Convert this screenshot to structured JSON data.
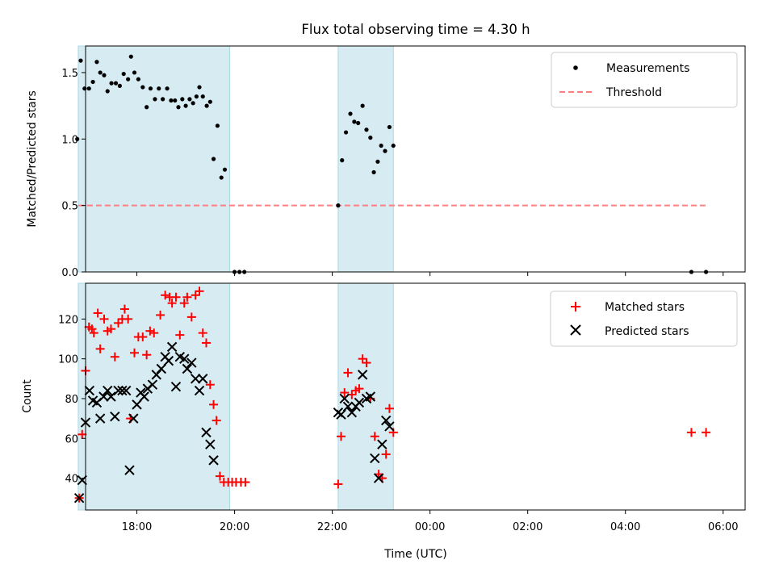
{
  "chart_data": [
    {
      "type": "scatter",
      "title": "Flux total observing time = 4.30 h",
      "xlabel": "",
      "ylabel": "Matched/Predicted stars",
      "ylim": [
        0,
        1.7
      ],
      "xlim": [
        16.95,
        30.45
      ],
      "yticks": [
        {
          "value": 0.0,
          "label": "0.0"
        },
        {
          "value": 0.5,
          "label": "0.5"
        },
        {
          "value": 1.0,
          "label": "1.0"
        },
        {
          "value": 1.5,
          "label": "1.5"
        }
      ],
      "shaded_intervals": [
        [
          16.8,
          19.9
        ],
        [
          22.12,
          23.25
        ]
      ],
      "legend_position": "top-right",
      "legend": [
        {
          "label": "Measurements",
          "marker": "dot",
          "color": "#000000"
        },
        {
          "label": "Threshold",
          "marker": "dashed-line",
          "color": "#ff7f7f"
        }
      ],
      "threshold": {
        "value": 0.5,
        "x_start": 16.8,
        "x_end": 29.65,
        "color": "#ff7f7f"
      },
      "series": [
        {
          "name": "Measurements",
          "color": "#000000",
          "points": [
            [
              16.78,
              1.0
            ],
            [
              16.85,
              1.59
            ],
            [
              16.93,
              1.38
            ],
            [
              17.02,
              1.38
            ],
            [
              17.1,
              1.43
            ],
            [
              17.18,
              1.58
            ],
            [
              17.25,
              1.5
            ],
            [
              17.33,
              1.48
            ],
            [
              17.4,
              1.36
            ],
            [
              17.48,
              1.42
            ],
            [
              17.57,
              1.42
            ],
            [
              17.65,
              1.4
            ],
            [
              17.73,
              1.49
            ],
            [
              17.82,
              1.45
            ],
            [
              17.88,
              1.62
            ],
            [
              17.95,
              1.5
            ],
            [
              18.03,
              1.45
            ],
            [
              18.12,
              1.39
            ],
            [
              18.2,
              1.24
            ],
            [
              18.28,
              1.38
            ],
            [
              18.37,
              1.3
            ],
            [
              18.45,
              1.38
            ],
            [
              18.53,
              1.3
            ],
            [
              18.62,
              1.38
            ],
            [
              18.7,
              1.29
            ],
            [
              18.78,
              1.29
            ],
            [
              18.85,
              1.24
            ],
            [
              18.93,
              1.3
            ],
            [
              19.0,
              1.25
            ],
            [
              19.08,
              1.3
            ],
            [
              19.15,
              1.27
            ],
            [
              19.22,
              1.32
            ],
            [
              19.28,
              1.39
            ],
            [
              19.35,
              1.32
            ],
            [
              19.43,
              1.25
            ],
            [
              19.5,
              1.28
            ],
            [
              19.57,
              0.85
            ],
            [
              19.65,
              1.1
            ],
            [
              19.73,
              0.71
            ],
            [
              19.8,
              0.77
            ],
            [
              20.0,
              0.0
            ],
            [
              20.1,
              0.0
            ],
            [
              20.2,
              0.0
            ],
            [
              22.12,
              0.5
            ],
            [
              22.2,
              0.84
            ],
            [
              22.28,
              1.05
            ],
            [
              22.37,
              1.19
            ],
            [
              22.45,
              1.13
            ],
            [
              22.53,
              1.12
            ],
            [
              22.62,
              1.25
            ],
            [
              22.7,
              1.07
            ],
            [
              22.78,
              1.01
            ],
            [
              22.85,
              0.75
            ],
            [
              22.93,
              0.83
            ],
            [
              23.0,
              0.95
            ],
            [
              23.08,
              0.91
            ],
            [
              23.17,
              1.09
            ],
            [
              23.25,
              0.95
            ],
            [
              29.35,
              0.0
            ],
            [
              29.65,
              0.0
            ]
          ]
        }
      ]
    },
    {
      "type": "scatter",
      "title": "",
      "xlabel": "Time (UTC)",
      "ylabel": "Count",
      "ylim": [
        24,
        138
      ],
      "xlim": [
        16.95,
        30.45
      ],
      "xticks": [
        {
          "value": 18,
          "label": "18:00"
        },
        {
          "value": 20,
          "label": "20:00"
        },
        {
          "value": 22,
          "label": "22:00"
        },
        {
          "value": 24,
          "label": "00:00"
        },
        {
          "value": 26,
          "label": "02:00"
        },
        {
          "value": 28,
          "label": "04:00"
        },
        {
          "value": 30,
          "label": "06:00"
        }
      ],
      "yticks": [
        {
          "value": 40,
          "label": "40"
        },
        {
          "value": 60,
          "label": "60"
        },
        {
          "value": 80,
          "label": "80"
        },
        {
          "value": 100,
          "label": "100"
        },
        {
          "value": 120,
          "label": "120"
        }
      ],
      "shaded_intervals": [
        [
          16.8,
          19.9
        ],
        [
          22.12,
          23.25
        ]
      ],
      "legend_position": "top-right",
      "legend": [
        {
          "label": "Matched stars",
          "marker": "plus",
          "color": "#ff0000"
        },
        {
          "label": "Predicted stars",
          "marker": "x",
          "color": "#000000"
        }
      ],
      "series": [
        {
          "name": "Matched stars",
          "marker": "plus",
          "color": "#ff0000",
          "points": [
            [
              16.82,
              30
            ],
            [
              16.88,
              62
            ],
            [
              16.95,
              94
            ],
            [
              17.02,
              116
            ],
            [
              17.08,
              115
            ],
            [
              17.12,
              113
            ],
            [
              17.2,
              123
            ],
            [
              17.25,
              105
            ],
            [
              17.33,
              120
            ],
            [
              17.4,
              114
            ],
            [
              17.47,
              115
            ],
            [
              17.55,
              101
            ],
            [
              17.62,
              118
            ],
            [
              17.7,
              120
            ],
            [
              17.75,
              125
            ],
            [
              17.82,
              120
            ],
            [
              17.87,
              70
            ],
            [
              17.95,
              103
            ],
            [
              18.03,
              111
            ],
            [
              18.12,
              111
            ],
            [
              18.2,
              102
            ],
            [
              18.27,
              114
            ],
            [
              18.35,
              113
            ],
            [
              18.48,
              122
            ],
            [
              18.58,
              132
            ],
            [
              18.67,
              131
            ],
            [
              18.72,
              128
            ],
            [
              18.8,
              131
            ],
            [
              18.88,
              112
            ],
            [
              18.97,
              128
            ],
            [
              19.03,
              131
            ],
            [
              19.12,
              121
            ],
            [
              19.2,
              132
            ],
            [
              19.28,
              134
            ],
            [
              19.35,
              113
            ],
            [
              19.42,
              108
            ],
            [
              19.5,
              87
            ],
            [
              19.57,
              77
            ],
            [
              19.63,
              69
            ],
            [
              19.7,
              41
            ],
            [
              19.78,
              38
            ],
            [
              19.87,
              38
            ],
            [
              19.95,
              38
            ],
            [
              20.03,
              38
            ],
            [
              20.13,
              38
            ],
            [
              20.22,
              38
            ],
            [
              22.12,
              37
            ],
            [
              22.18,
              61
            ],
            [
              22.25,
              83
            ],
            [
              22.32,
              93
            ],
            [
              22.4,
              82
            ],
            [
              22.48,
              84
            ],
            [
              22.55,
              85
            ],
            [
              22.62,
              100
            ],
            [
              22.7,
              98
            ],
            [
              22.78,
              80
            ],
            [
              22.87,
              61
            ],
            [
              22.95,
              42
            ],
            [
              23.02,
              40
            ],
            [
              23.1,
              52
            ],
            [
              23.17,
              75
            ],
            [
              23.25,
              63
            ],
            [
              29.35,
              63
            ],
            [
              29.65,
              63
            ]
          ]
        },
        {
          "name": "Predicted stars",
          "marker": "x",
          "color": "#000000",
          "points": [
            [
              16.82,
              30
            ],
            [
              16.88,
              39
            ],
            [
              16.95,
              68
            ],
            [
              17.03,
              84
            ],
            [
              17.1,
              79
            ],
            [
              17.18,
              78
            ],
            [
              17.25,
              70
            ],
            [
              17.32,
              81
            ],
            [
              17.4,
              84
            ],
            [
              17.47,
              81
            ],
            [
              17.55,
              71
            ],
            [
              17.62,
              84
            ],
            [
              17.7,
              84
            ],
            [
              17.78,
              84
            ],
            [
              17.85,
              44
            ],
            [
              17.93,
              70
            ],
            [
              18.0,
              77
            ],
            [
              18.08,
              83
            ],
            [
              18.15,
              81
            ],
            [
              18.22,
              85
            ],
            [
              18.32,
              87
            ],
            [
              18.4,
              92
            ],
            [
              18.5,
              95
            ],
            [
              18.58,
              101
            ],
            [
              18.65,
              99
            ],
            [
              18.72,
              106
            ],
            [
              18.8,
              86
            ],
            [
              18.88,
              101
            ],
            [
              18.97,
              100
            ],
            [
              19.03,
              95
            ],
            [
              19.12,
              98
            ],
            [
              19.2,
              90
            ],
            [
              19.28,
              84
            ],
            [
              19.35,
              90
            ],
            [
              19.42,
              63
            ],
            [
              19.5,
              57
            ],
            [
              19.57,
              49
            ],
            [
              22.12,
              73
            ],
            [
              22.18,
              72
            ],
            [
              22.25,
              80
            ],
            [
              22.32,
              76
            ],
            [
              22.4,
              73
            ],
            [
              22.48,
              76
            ],
            [
              22.55,
              78
            ],
            [
              22.62,
              92
            ],
            [
              22.7,
              80
            ],
            [
              22.78,
              81
            ],
            [
              22.87,
              50
            ],
            [
              22.95,
              40
            ],
            [
              23.02,
              57
            ],
            [
              23.1,
              69
            ],
            [
              23.17,
              66
            ]
          ]
        }
      ]
    }
  ]
}
